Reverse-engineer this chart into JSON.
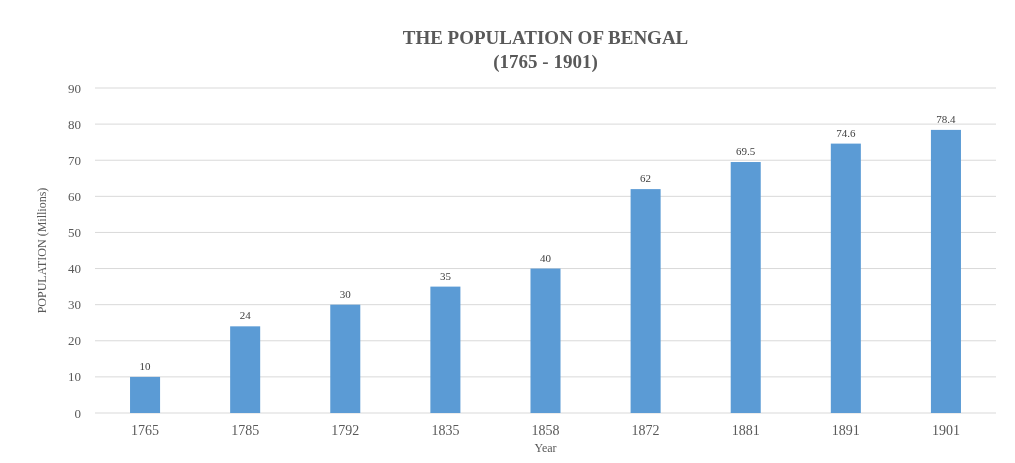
{
  "chart_data": {
    "type": "bar",
    "title": "THE POPULATION OF BENGAL",
    "subtitle": "(1765 - 1901)",
    "xlabel": "Year",
    "ylabel": "POPULATION (Millions)",
    "categories": [
      "1765",
      "1785",
      "1792",
      "1835",
      "1858",
      "1872",
      "1881",
      "1891",
      "1901"
    ],
    "values": [
      10,
      24,
      30,
      35,
      40,
      62,
      69.5,
      74.6,
      78.4
    ],
    "color": "#5b9bd5",
    "ylim": [
      0,
      90
    ],
    "yticks": [
      0,
      10,
      20,
      30,
      40,
      50,
      60,
      70,
      80,
      90
    ],
    "grid": "y",
    "data_labels": true
  }
}
